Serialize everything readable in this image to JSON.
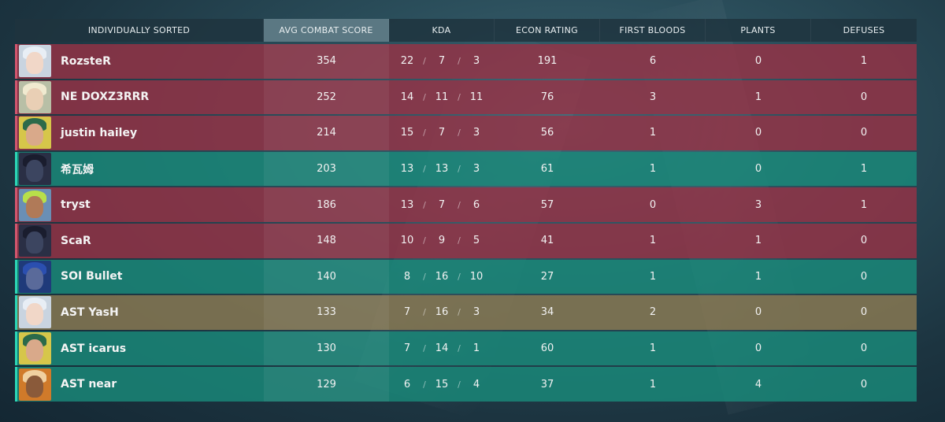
{
  "header": {
    "name_col": "INDIVIDUALLY SORTED",
    "acs_col": "AVG COMBAT SCORE",
    "kda_col": "KDA",
    "econ_col": "ECON RATING",
    "fb_col": "FIRST BLOODS",
    "plants_col": "PLANTS",
    "defuses_col": "DEFUSES"
  },
  "colors": {
    "enemy_row": "#96324a",
    "ally_row": "#1a8a7a",
    "self_row": "#877852",
    "active_header": "#5b7883"
  },
  "players": [
    {
      "name": "RozsteR",
      "team": "enemy",
      "agent_icon": "jett-portrait-icon",
      "acs": "354",
      "k": "22",
      "d": "7",
      "a": "3",
      "econ": "191",
      "fb": "6",
      "plants": "0",
      "defuses": "1"
    },
    {
      "name": "NE DOXZ3RRR",
      "team": "enemy",
      "agent_icon": "sova-portrait-icon",
      "acs": "252",
      "k": "14",
      "d": "11",
      "a": "11",
      "econ": "76",
      "fb": "3",
      "plants": "1",
      "defuses": "0"
    },
    {
      "name": "justin hailey",
      "team": "enemy",
      "agent_icon": "killjoy-portrait-icon",
      "acs": "214",
      "k": "15",
      "d": "7",
      "a": "3",
      "econ": "56",
      "fb": "1",
      "plants": "0",
      "defuses": "0"
    },
    {
      "name": "希瓦姆",
      "team": "ally",
      "agent_icon": "omen-portrait-icon",
      "acs": "203",
      "k": "13",
      "d": "13",
      "a": "3",
      "econ": "61",
      "fb": "1",
      "plants": "0",
      "defuses": "1"
    },
    {
      "name": "tryst",
      "team": "enemy",
      "agent_icon": "neon-portrait-icon",
      "acs": "186",
      "k": "13",
      "d": "7",
      "a": "6",
      "econ": "57",
      "fb": "0",
      "plants": "3",
      "defuses": "1"
    },
    {
      "name": "ScaR",
      "team": "enemy",
      "agent_icon": "omen-portrait-icon",
      "acs": "148",
      "k": "10",
      "d": "9",
      "a": "5",
      "econ": "41",
      "fb": "1",
      "plants": "1",
      "defuses": "0"
    },
    {
      "name": "SOI Bullet",
      "team": "ally",
      "agent_icon": "kayo-portrait-icon",
      "acs": "140",
      "k": "8",
      "d": "16",
      "a": "10",
      "econ": "27",
      "fb": "1",
      "plants": "1",
      "defuses": "0"
    },
    {
      "name": "AST YasH",
      "team": "self",
      "agent_icon": "jett-portrait-icon",
      "acs": "133",
      "k": "7",
      "d": "16",
      "a": "3",
      "econ": "34",
      "fb": "2",
      "plants": "0",
      "defuses": "0"
    },
    {
      "name": "AST icarus",
      "team": "ally",
      "agent_icon": "killjoy-portrait-icon",
      "acs": "130",
      "k": "7",
      "d": "14",
      "a": "1",
      "econ": "60",
      "fb": "1",
      "plants": "0",
      "defuses": "0"
    },
    {
      "name": "AST near",
      "team": "ally",
      "agent_icon": "phoenix-portrait-icon",
      "acs": "129",
      "k": "6",
      "d": "15",
      "a": "4",
      "econ": "37",
      "fb": "1",
      "plants": "4",
      "defuses": "0"
    }
  ]
}
